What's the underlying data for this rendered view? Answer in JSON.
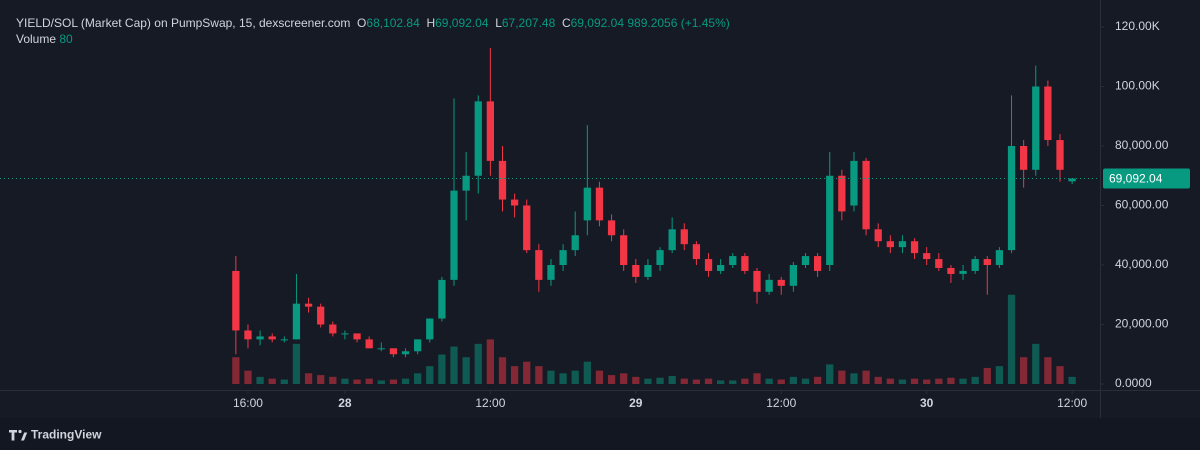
{
  "chart_data": {
    "type": "candlestick",
    "header": {
      "title": "YIELD/SOL (Market Cap) on PumpSwap, 15, dexscreener.com",
      "open_label": "O",
      "open": "68,102.84",
      "high_label": "H",
      "high": "69,092.04",
      "low_label": "L",
      "low": "67,207.48",
      "close_label": "C",
      "close": "69,092.04",
      "change": "989.2056 (+1.45%)",
      "volume_label": "Volume",
      "volume_value": "80"
    },
    "watermark": "TradingView",
    "x": [
      15,
      16,
      17,
      18,
      19,
      20,
      21,
      22,
      23,
      24,
      25,
      26,
      27,
      28,
      29,
      30,
      31,
      32,
      33,
      34,
      35,
      36,
      37,
      38,
      39,
      40,
      41,
      42,
      43,
      44,
      45,
      46,
      47,
      48,
      49,
      50,
      51,
      52,
      53,
      54,
      55,
      56,
      57,
      58,
      59,
      60,
      61,
      62,
      63,
      64,
      65,
      66,
      67,
      68,
      69,
      70,
      71,
      72,
      73,
      74,
      75,
      76,
      77,
      78,
      79,
      80,
      81,
      82,
      83,
      84
    ],
    "open": [
      38000,
      18000,
      15000,
      16000,
      15000,
      15000,
      27000,
      26000,
      20000,
      17000,
      17000,
      15000,
      12000,
      12000,
      10000,
      11000,
      15000,
      22000,
      35000,
      65000,
      70000,
      95000,
      75000,
      62000,
      60000,
      45000,
      35000,
      40000,
      45000,
      55000,
      66000,
      55000,
      50000,
      40000,
      36000,
      40000,
      45000,
      52000,
      47000,
      42000,
      38000,
      40000,
      43000,
      38000,
      31000,
      35000,
      33000,
      40000,
      43000,
      40000,
      70000,
      60000,
      75000,
      52000,
      48000,
      46000,
      48000,
      44000,
      42000,
      39000,
      37000,
      38000,
      42000,
      40000,
      45000,
      80000,
      72000,
      100000,
      82000,
      68102.84
    ],
    "high": [
      43000,
      20000,
      18000,
      17000,
      16000,
      37000,
      29000,
      27000,
      21000,
      18000,
      17000,
      16000,
      14000,
      12000,
      12000,
      15000,
      22000,
      36000,
      96000,
      78000,
      97000,
      113000,
      80000,
      64000,
      62000,
      47000,
      42000,
      47000,
      58000,
      87000,
      68000,
      57000,
      52000,
      42000,
      42000,
      46000,
      56000,
      54000,
      48000,
      44000,
      42000,
      44000,
      44000,
      39000,
      37000,
      36000,
      41000,
      44000,
      44000,
      78000,
      72000,
      78000,
      76000,
      54000,
      50000,
      50000,
      49000,
      46000,
      44000,
      40000,
      40000,
      43000,
      43000,
      46000,
      97000,
      82000,
      107000,
      102000,
      84000,
      69092.04
    ],
    "low": [
      10000,
      12000,
      13000,
      14000,
      14000,
      15000,
      24000,
      19000,
      16000,
      15000,
      14000,
      12000,
      11000,
      9000,
      9000,
      10000,
      14000,
      21000,
      33000,
      55000,
      64000,
      70000,
      58000,
      56000,
      44000,
      31000,
      33000,
      38000,
      43000,
      50000,
      53000,
      48000,
      38000,
      34000,
      35000,
      38000,
      44000,
      45000,
      40000,
      36000,
      37000,
      39000,
      37000,
      27000,
      30000,
      30000,
      31000,
      39000,
      36000,
      38000,
      55000,
      58000,
      50000,
      46000,
      44000,
      44000,
      42000,
      40000,
      38000,
      34000,
      35000,
      37000,
      30000,
      39000,
      44000,
      66000,
      70000,
      80000,
      68000,
      67207.48
    ],
    "close": [
      18000,
      15000,
      16000,
      15000,
      15000,
      27000,
      26000,
      20000,
      17000,
      17000,
      15000,
      12000,
      12000,
      10000,
      11000,
      15000,
      22000,
      35000,
      65000,
      70000,
      95000,
      75000,
      62000,
      60000,
      45000,
      35000,
      40000,
      45000,
      50000,
      66000,
      55000,
      50000,
      40000,
      36000,
      40000,
      45000,
      52000,
      47000,
      42000,
      38000,
      40000,
      43000,
      38000,
      31000,
      35000,
      33000,
      40000,
      43000,
      38000,
      70000,
      58000,
      75000,
      52000,
      48000,
      46000,
      48000,
      44000,
      42000,
      39000,
      37000,
      38000,
      42000,
      40000,
      45000,
      80000,
      72000,
      100000,
      82000,
      72000,
      69092.04
    ],
    "volume": [
      300,
      150,
      80,
      60,
      50,
      450,
      120,
      100,
      80,
      60,
      50,
      60,
      40,
      50,
      60,
      120,
      200,
      330,
      420,
      300,
      450,
      500,
      300,
      200,
      250,
      200,
      150,
      120,
      150,
      250,
      150,
      100,
      120,
      80,
      60,
      70,
      90,
      60,
      50,
      60,
      40,
      40,
      60,
      120,
      60,
      50,
      80,
      60,
      80,
      220,
      150,
      120,
      150,
      80,
      60,
      50,
      60,
      50,
      60,
      70,
      60,
      80,
      180,
      200,
      1000,
      300,
      450,
      300,
      200,
      80
    ],
    "up_color": "#089981",
    "down_color": "#f23645",
    "xlim": [
      -4.46,
      86.3
    ],
    "xticks": [
      {
        "value": 16,
        "label": "16:00"
      },
      {
        "value": 24,
        "label": "28"
      },
      {
        "value": 36,
        "label": "12:00"
      },
      {
        "value": 48,
        "label": "29"
      },
      {
        "value": 60,
        "label": "12:00"
      },
      {
        "value": 72,
        "label": "30"
      },
      {
        "value": 84,
        "label": "12:00"
      }
    ],
    "ylim": [
      -2000,
      120000
    ],
    "yticks": [
      {
        "value": 0,
        "label": "0.0000"
      },
      {
        "value": 20000,
        "label": "20,000.00"
      },
      {
        "value": 40000,
        "label": "40,000.00"
      },
      {
        "value": 60000,
        "label": "60,000.00"
      },
      {
        "value": 80000,
        "label": "80,000.00"
      },
      {
        "value": 100000,
        "label": "100.00K"
      },
      {
        "value": 120000,
        "label": "120.00K"
      }
    ],
    "y2lim": [
      0,
      4000
    ],
    "last_price": {
      "value": 69092.04,
      "label": "69,092.04"
    }
  }
}
